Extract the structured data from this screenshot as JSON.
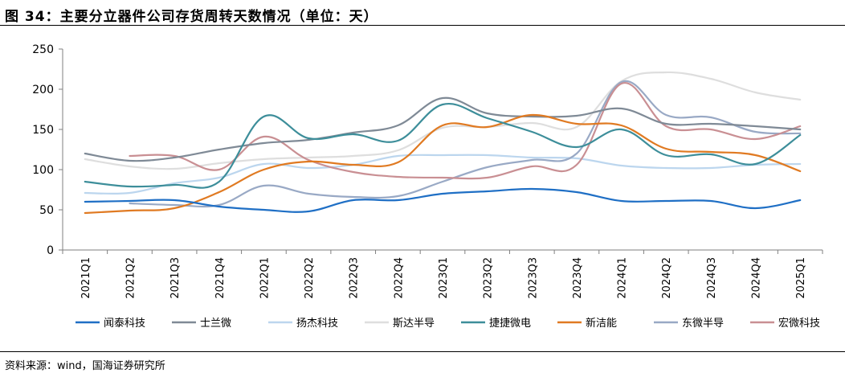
{
  "header": {
    "title": "图 34：主要分立器件公司存货周转天数情况（单位：天）"
  },
  "footer": {
    "source": "资料来源：wind，国海证券研究所"
  },
  "chart_data": {
    "type": "line",
    "title": "",
    "xlabel": "",
    "ylabel": "",
    "ylim": [
      0,
      250
    ],
    "yticks": [
      0,
      50,
      100,
      150,
      200,
      250
    ],
    "grid": false,
    "legend_position": "bottom",
    "categories": [
      "2021Q1",
      "2021Q2",
      "2021Q3",
      "2021Q4",
      "2022Q1",
      "2022Q2",
      "2022Q3",
      "2022Q4",
      "2023Q1",
      "2023Q2",
      "2023Q3",
      "2023Q4",
      "2024Q1",
      "2024Q2",
      "2024Q3",
      "2024Q4",
      "2025Q1"
    ],
    "series": [
      {
        "name": "闻泰科技",
        "color": "#1f6fc5",
        "values": [
          60,
          61,
          62,
          54,
          50,
          48,
          62,
          62,
          70,
          73,
          76,
          72,
          61,
          61,
          61,
          52,
          62
        ]
      },
      {
        "name": "士兰微",
        "color": "#7f8a96",
        "values": [
          120,
          111,
          115,
          125,
          133,
          137,
          146,
          155,
          189,
          170,
          166,
          167,
          176,
          157,
          157,
          154,
          150
        ]
      },
      {
        "name": "扬杰科技",
        "color": "#bcd6ee",
        "values": [
          71,
          71,
          83,
          90,
          107,
          102,
          106,
          117,
          118,
          118,
          115,
          114,
          105,
          102,
          102,
          106,
          107
        ]
      },
      {
        "name": "斯达半导",
        "color": "#dedede",
        "values": [
          113,
          104,
          101,
          108,
          113,
          115,
          117,
          124,
          152,
          153,
          158,
          153,
          210,
          221,
          213,
          196,
          187
        ]
      },
      {
        "name": "捷捷微电",
        "color": "#3d8e9a",
        "values": [
          85,
          79,
          81,
          85,
          166,
          139,
          144,
          136,
          181,
          164,
          147,
          128,
          150,
          118,
          119,
          107,
          143
        ]
      },
      {
        "name": "新洁能",
        "color": "#e07a22",
        "values": [
          46,
          49,
          52,
          72,
          100,
          110,
          106,
          109,
          155,
          153,
          168,
          157,
          155,
          126,
          122,
          118,
          98
        ]
      },
      {
        "name": "东微半导",
        "color": "#99a9c5",
        "values": [
          null,
          58,
          56,
          56,
          80,
          70,
          66,
          67,
          85,
          103,
          112,
          120,
          209,
          168,
          165,
          147,
          145
        ]
      },
      {
        "name": "宏微科技",
        "color": "#c98f93",
        "values": [
          null,
          117,
          117,
          100,
          141,
          112,
          97,
          91,
          90,
          90,
          104,
          106,
          207,
          154,
          150,
          138,
          154
        ]
      }
    ]
  }
}
